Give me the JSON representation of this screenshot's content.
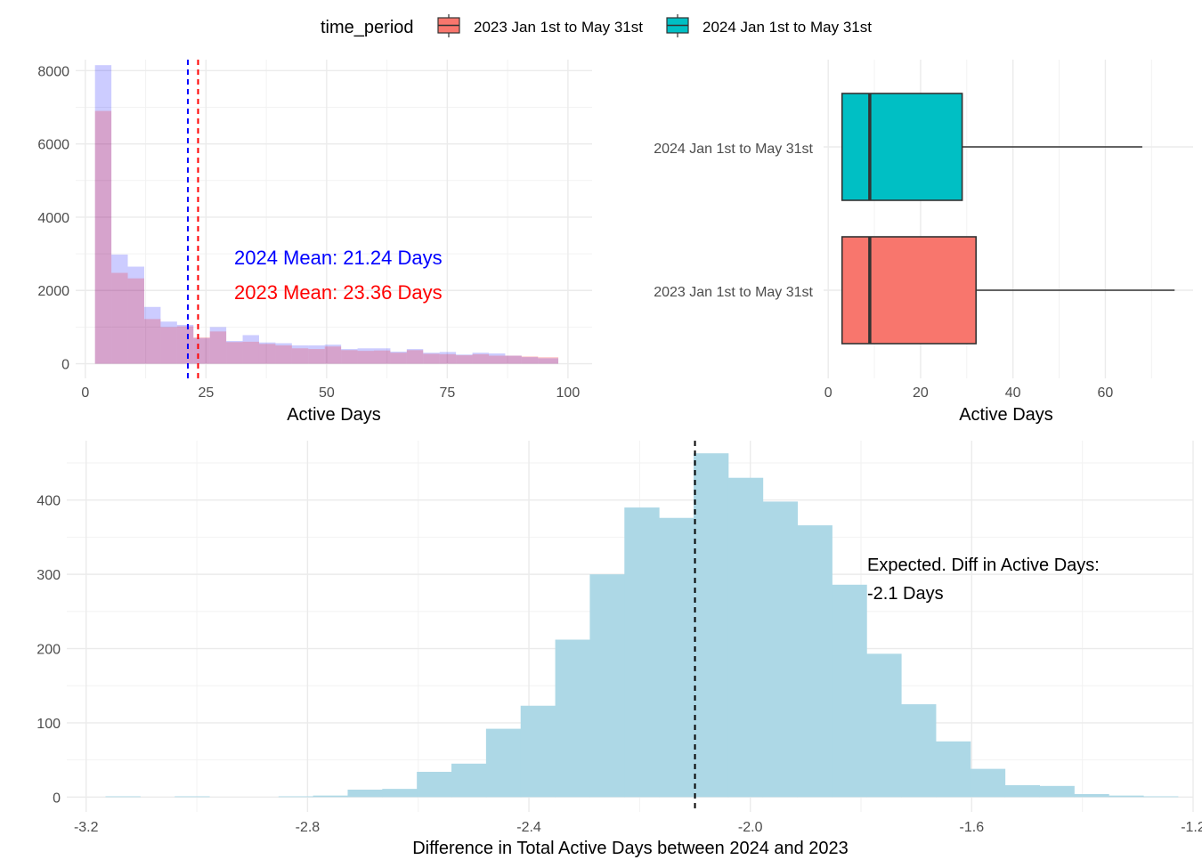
{
  "legend": {
    "title": "time_period",
    "items": [
      {
        "label": "2023 Jan 1st to May 31st",
        "color": "#F8766D"
      },
      {
        "label": "2024 Jan 1st to May 31st",
        "color": "#00BFC4"
      }
    ]
  },
  "chart_data": [
    {
      "type": "histogram",
      "xlabel": "Active Days",
      "ylabel": "",
      "xlim": [
        -2,
        105
      ],
      "ylim": [
        -400,
        8300
      ],
      "x_ticks": [
        0,
        25,
        50,
        75,
        100
      ],
      "y_ticks": [
        0,
        2000,
        4000,
        6000,
        8000
      ],
      "grid": true,
      "bins": [
        [
          2,
          5.4
        ],
        [
          5.4,
          8.8
        ],
        [
          8.8,
          12.2
        ],
        [
          12.2,
          15.6
        ],
        [
          15.6,
          19
        ],
        [
          19,
          22.4
        ],
        [
          22.4,
          25.8
        ],
        [
          25.8,
          29.2
        ],
        [
          29.2,
          32.6
        ],
        [
          32.6,
          36
        ],
        [
          36,
          39.4
        ],
        [
          39.4,
          42.8
        ],
        [
          42.8,
          46.2
        ],
        [
          46.2,
          49.6
        ],
        [
          49.6,
          53
        ],
        [
          53,
          56.4
        ],
        [
          56.4,
          59.8
        ],
        [
          59.8,
          63.2
        ],
        [
          63.2,
          66.6
        ],
        [
          66.6,
          70
        ],
        [
          70,
          73.4
        ],
        [
          73.4,
          76.8
        ],
        [
          76.8,
          80.2
        ],
        [
          80.2,
          83.6
        ],
        [
          83.6,
          87
        ],
        [
          87,
          90.4
        ],
        [
          90.4,
          93.8
        ],
        [
          93.8,
          98
        ]
      ],
      "series": [
        {
          "name": "2024",
          "color": "#0000FF",
          "opacity": 0.2,
          "values": [
            8150,
            2980,
            2650,
            1550,
            1150,
            1060,
            700,
            1000,
            620,
            780,
            580,
            560,
            500,
            500,
            520,
            400,
            420,
            420,
            330,
            400,
            300,
            320,
            250,
            300,
            280,
            220,
            180,
            150
          ]
        },
        {
          "name": "2023",
          "color": "#FF0000",
          "opacity": 0.2,
          "values": [
            6900,
            2480,
            2330,
            1220,
            1000,
            1020,
            720,
            880,
            590,
            600,
            540,
            500,
            420,
            400,
            470,
            370,
            350,
            360,
            300,
            370,
            270,
            260,
            230,
            260,
            220,
            220,
            200,
            180
          ]
        }
      ],
      "mean_lines": [
        {
          "label": "2024 Mean: 21.24 Days",
          "value": 21.24,
          "color": "#0000FF"
        },
        {
          "label": "2023 Mean: 23.36 Days",
          "value": 23.36,
          "color": "#FF0000"
        }
      ]
    },
    {
      "type": "boxplot",
      "xlabel": "Active Days",
      "xlim": [
        -1,
        79
      ],
      "x_ticks": [
        0,
        20,
        40,
        60
      ],
      "categories": [
        "2024 Jan 1st to May 31st",
        "2023 Jan 1st to May 31st"
      ],
      "boxes": [
        {
          "category": "2024 Jan 1st to May 31st",
          "color": "#00BFC4",
          "min": 3,
          "q1": 3,
          "median": 9,
          "q3": 29,
          "max": 68
        },
        {
          "category": "2023 Jan 1st to May 31st",
          "color": "#F8766D",
          "min": 3,
          "q1": 3,
          "median": 9,
          "q3": 32,
          "max": 75
        }
      ]
    },
    {
      "type": "histogram",
      "xlabel": "Difference in Total Active Days between 2024 and 2023",
      "ylabel": "",
      "xlim": [
        -3.235,
        -1.2
      ],
      "ylim": [
        -20,
        480
      ],
      "x_ticks": [
        -3.2,
        -2.8,
        -2.4,
        -2.0,
        -1.6,
        -1.2
      ],
      "x_tick_labels": [
        "-3.2",
        "-2.8",
        "-2.4",
        "-2.0",
        "-1.6",
        "-1.2"
      ],
      "y_ticks": [
        0,
        100,
        200,
        300,
        400
      ],
      "fill": "#ADD8E6",
      "bin_start": -3.165,
      "bin_width": 0.0625,
      "values": [
        1,
        0,
        1,
        0,
        0,
        1,
        2,
        10,
        11,
        34,
        45,
        92,
        123,
        212,
        300,
        390,
        376,
        463,
        430,
        398,
        366,
        286,
        193,
        125,
        75,
        38,
        16,
        15,
        4,
        2,
        1
      ],
      "expected": {
        "value": -2.1,
        "label_line1": "Expected. Diff in Active Days:",
        "label_line2": "-2.1 Days"
      }
    }
  ]
}
